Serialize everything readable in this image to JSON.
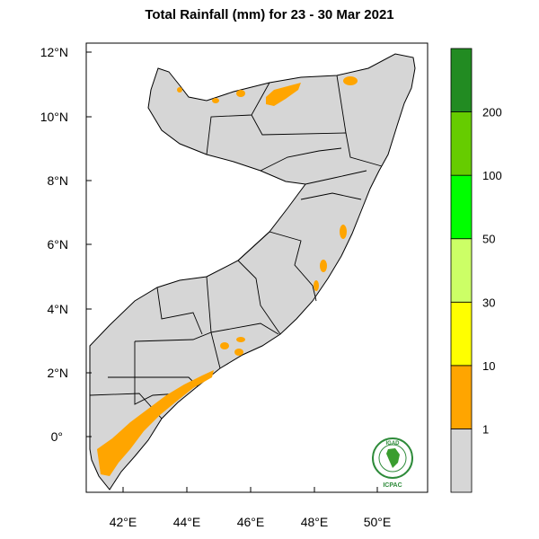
{
  "map": {
    "title": "Total Rainfall (mm) for 23 - 30 Mar 2021",
    "region": "Somalia",
    "lat_ticks": [
      "12°N",
      "10°N",
      "8°N",
      "6°N",
      "4°N",
      "2°N",
      "0°"
    ],
    "lon_ticks": [
      "42°E",
      "44°E",
      "46°E",
      "48°E",
      "50°E"
    ],
    "colors": {
      "land": "#d6d6d6",
      "rain_1_10": "#ffa500",
      "border": "#000000"
    }
  },
  "legend": {
    "bins": [
      {
        "label": "",
        "color": "#d6d6d6"
      },
      {
        "label": "1",
        "color": "#ffa500"
      },
      {
        "label": "10",
        "color": "#ffff00"
      },
      {
        "label": "30",
        "color": "#ccff66"
      },
      {
        "label": "50",
        "color": "#00ff00"
      },
      {
        "label": "100",
        "color": "#66cc00"
      },
      {
        "label": "200",
        "color": "#228b22"
      }
    ],
    "tick_labels": [
      "1",
      "10",
      "30",
      "50",
      "100",
      "200"
    ]
  },
  "logo": {
    "top_text": "IGAD",
    "bottom_text": "ICPAC"
  }
}
